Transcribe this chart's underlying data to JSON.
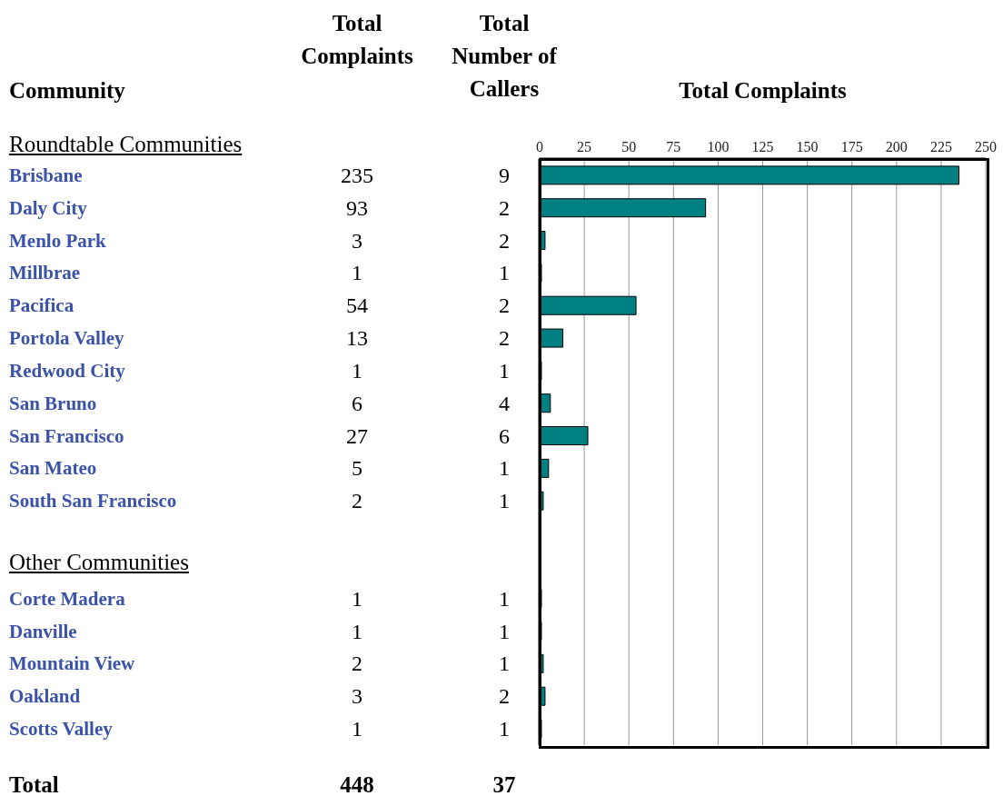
{
  "chart_data": {
    "type": "bar",
    "orientation": "horizontal",
    "xlabel": "Total Complaints",
    "categories": [
      "Brisbane",
      "Daly City",
      "Menlo Park",
      "Millbrae",
      "Pacifica",
      "Portola Valley",
      "Redwood City",
      "San Bruno",
      "San Francisco",
      "San Mateo",
      "South San Francisco",
      null,
      null,
      "Corte Madera",
      "Danville",
      "Mountain View",
      "Oakland",
      "Scotts Valley"
    ],
    "values": [
      235,
      93,
      3,
      1,
      54,
      13,
      1,
      6,
      27,
      5,
      2,
      null,
      null,
      1,
      1,
      2,
      3,
      1
    ],
    "color": "#008080",
    "x2lim": [
      0,
      250
    ],
    "x2ticks": [
      0,
      25,
      50,
      75,
      100,
      125,
      150,
      175,
      200,
      225,
      250
    ],
    "grid": "x",
    "data_labels": true,
    "annotations": [
      "Community",
      "Total Complaints",
      "Total Number of Callers",
      "Roundtable Communities",
      "Other Communities",
      "Total",
      "448",
      "37",
      "9",
      "2",
      "2",
      "1",
      "2",
      "2",
      "1",
      "4",
      "6",
      "1",
      "1",
      "1",
      "1",
      "1",
      "2",
      "1"
    ]
  }
}
